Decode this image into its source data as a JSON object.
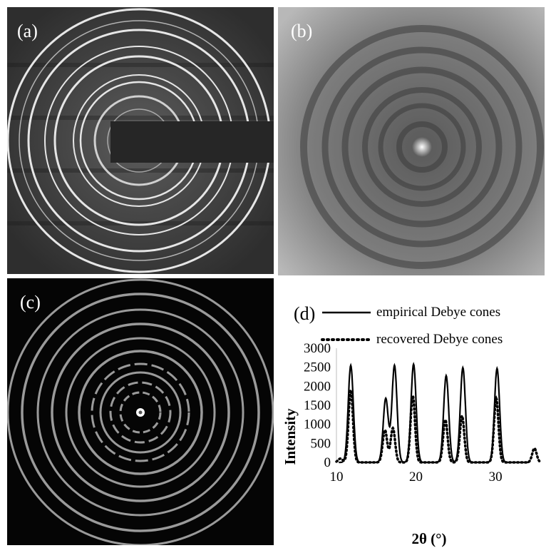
{
  "panels": {
    "a": {
      "label": "(a)"
    },
    "b": {
      "label": "(b)"
    },
    "c": {
      "label": "(c)"
    },
    "d": {
      "label": "(d)"
    }
  },
  "colors": {
    "panel_a_bg": "#3a3a3a",
    "panel_b_bg": "#8a8a8a",
    "panel_c_bg": "#050505",
    "ring_light": "#e8e8e8",
    "ring_c": "#9a9a9a"
  },
  "chart_data": {
    "type": "line",
    "xlabel": "2θ (°)",
    "ylabel": "Intensity",
    "xlim": [
      10,
      36
    ],
    "ylim": [
      0,
      3000
    ],
    "x_ticks": [
      "10",
      "20",
      "30"
    ],
    "y_ticks": [
      "0",
      "500",
      "1000",
      "1500",
      "2000",
      "2500",
      "3000"
    ],
    "legend_position": "top",
    "series": [
      {
        "name": "empirical Debye cones",
        "style": "solid",
        "peaks": [
          {
            "x": 11.8,
            "y": 2550
          },
          {
            "x": 16.2,
            "y": 1680
          },
          {
            "x": 17.3,
            "y": 2550
          },
          {
            "x": 19.7,
            "y": 2580
          },
          {
            "x": 23.8,
            "y": 2280
          },
          {
            "x": 25.9,
            "y": 2490
          },
          {
            "x": 30.2,
            "y": 2470
          }
        ]
      },
      {
        "name": "recovered Debye cones",
        "style": "dotted",
        "peaks": [
          {
            "x": 10.5,
            "y": 100
          },
          {
            "x": 11.8,
            "y": 1900
          },
          {
            "x": 16.1,
            "y": 850
          },
          {
            "x": 17.1,
            "y": 900
          },
          {
            "x": 19.6,
            "y": 1750
          },
          {
            "x": 23.7,
            "y": 1120
          },
          {
            "x": 25.8,
            "y": 1220
          },
          {
            "x": 30.1,
            "y": 1680
          },
          {
            "x": 34.9,
            "y": 370
          }
        ]
      }
    ]
  }
}
